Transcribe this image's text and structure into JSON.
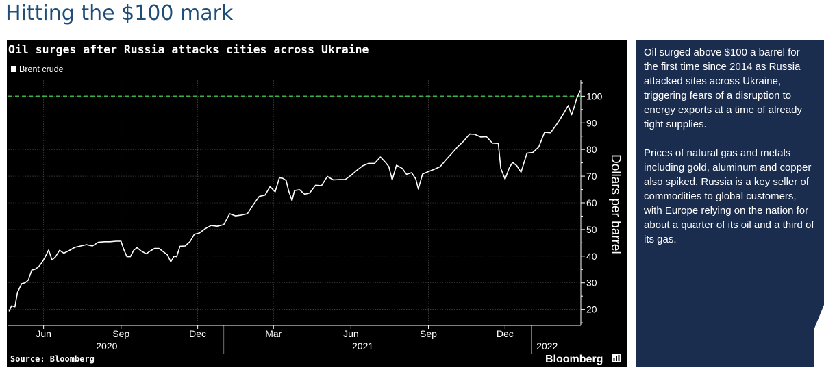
{
  "page": {
    "title": "Hitting the $100 mark"
  },
  "info_panel": {
    "paragraphs": [
      "Oil surged above $100 a barrel for the first time since 2014 as Russia attacked sites across Ukraine, triggering fears of a disruption to energy exports at a time of already tight supplies.",
      "Prices of natural gas and metals including gold, aluminum and copper also spiked. Russia is a key seller of commodities to global customers, with Europe relying on the nation for about a quarter of its oil and a third of its gas."
    ]
  },
  "colors": {
    "title": "#1f4e79",
    "chart_bg": "#000000",
    "line": "#ffffff",
    "reference_line": "#3cb043",
    "panel_bg": "#1b2d4f"
  },
  "chart_data": {
    "type": "line",
    "title": "Oil surges after Russia attacks cities across Ukraine",
    "legend": [
      "Brent crude"
    ],
    "legend_position": "top-left",
    "ylabel": "Dollars per barrel",
    "ylim": [
      14,
      106
    ],
    "y_axis_side": "right",
    "y_ticks": [
      20,
      30,
      40,
      50,
      60,
      70,
      80,
      90,
      100
    ],
    "x_range": [
      "2020-04-20",
      "2022-03-01"
    ],
    "x_ticks": [
      {
        "label": "Jun",
        "date": "2020-06-01"
      },
      {
        "label": "Sep",
        "date": "2020-09-01"
      },
      {
        "label": "Dec",
        "date": "2020-12-01"
      },
      {
        "label": "Mar",
        "date": "2021-03-01"
      },
      {
        "label": "Jun",
        "date": "2021-06-01"
      },
      {
        "label": "Sep",
        "date": "2021-09-01"
      },
      {
        "label": "Dec",
        "date": "2021-12-01"
      }
    ],
    "year_labels": [
      {
        "label": "2020",
        "date": "2020-08-15"
      },
      {
        "label": "2021",
        "date": "2021-06-15"
      },
      {
        "label": "2022",
        "date": "2022-01-20"
      }
    ],
    "year_separators": [
      "2021-01-01",
      "2022-01-01"
    ],
    "reference_line": {
      "y": 100,
      "style": "dashed"
    },
    "grid": true,
    "series": [
      {
        "name": "Brent crude",
        "points": [
          [
            "2020-04-21",
            19.3
          ],
          [
            "2020-04-24",
            21.4
          ],
          [
            "2020-04-28",
            21.0
          ],
          [
            "2020-05-01",
            26.4
          ],
          [
            "2020-05-06",
            29.7
          ],
          [
            "2020-05-10",
            30.0
          ],
          [
            "2020-05-14",
            31.1
          ],
          [
            "2020-05-18",
            34.8
          ],
          [
            "2020-05-22",
            35.1
          ],
          [
            "2020-05-26",
            36.0
          ],
          [
            "2020-05-30",
            37.6
          ],
          [
            "2020-06-03",
            39.8
          ],
          [
            "2020-06-07",
            42.3
          ],
          [
            "2020-06-11",
            38.6
          ],
          [
            "2020-06-15",
            39.7
          ],
          [
            "2020-06-20",
            42.2
          ],
          [
            "2020-06-25",
            41.1
          ],
          [
            "2020-07-01",
            42.0
          ],
          [
            "2020-07-08",
            43.3
          ],
          [
            "2020-07-15",
            43.8
          ],
          [
            "2020-07-22",
            44.3
          ],
          [
            "2020-07-29",
            43.8
          ],
          [
            "2020-08-05",
            45.2
          ],
          [
            "2020-08-12",
            45.4
          ],
          [
            "2020-08-19",
            45.4
          ],
          [
            "2020-08-26",
            45.6
          ],
          [
            "2020-09-01",
            45.6
          ],
          [
            "2020-09-04",
            42.7
          ],
          [
            "2020-09-08",
            39.8
          ],
          [
            "2020-09-12",
            39.8
          ],
          [
            "2020-09-16",
            42.2
          ],
          [
            "2020-09-20",
            43.2
          ],
          [
            "2020-09-25",
            41.9
          ],
          [
            "2020-10-01",
            40.9
          ],
          [
            "2020-10-06",
            42.0
          ],
          [
            "2020-10-11",
            42.9
          ],
          [
            "2020-10-16",
            42.9
          ],
          [
            "2020-10-21",
            41.7
          ],
          [
            "2020-10-26",
            40.5
          ],
          [
            "2020-10-30",
            37.9
          ],
          [
            "2020-11-03",
            40.0
          ],
          [
            "2020-11-06",
            39.8
          ],
          [
            "2020-11-10",
            43.7
          ],
          [
            "2020-11-16",
            43.8
          ],
          [
            "2020-11-22",
            45.5
          ],
          [
            "2020-11-27",
            48.2
          ],
          [
            "2020-12-03",
            48.7
          ],
          [
            "2020-12-10",
            50.3
          ],
          [
            "2020-12-17",
            51.5
          ],
          [
            "2020-12-24",
            51.2
          ],
          [
            "2021-01-01",
            51.8
          ],
          [
            "2021-01-08",
            55.9
          ],
          [
            "2021-01-15",
            55.1
          ],
          [
            "2021-01-22",
            55.4
          ],
          [
            "2021-01-29",
            55.9
          ],
          [
            "2021-02-05",
            59.3
          ],
          [
            "2021-02-12",
            62.4
          ],
          [
            "2021-02-19",
            62.9
          ],
          [
            "2021-02-25",
            66.1
          ],
          [
            "2021-03-03",
            64.1
          ],
          [
            "2021-03-08",
            69.4
          ],
          [
            "2021-03-12",
            69.2
          ],
          [
            "2021-03-16",
            68.4
          ],
          [
            "2021-03-19",
            64.5
          ],
          [
            "2021-03-23",
            60.8
          ],
          [
            "2021-03-26",
            64.6
          ],
          [
            "2021-04-01",
            64.9
          ],
          [
            "2021-04-07",
            63.2
          ],
          [
            "2021-04-13",
            63.7
          ],
          [
            "2021-04-20",
            66.6
          ],
          [
            "2021-04-27",
            66.4
          ],
          [
            "2021-05-04",
            69.9
          ],
          [
            "2021-05-11",
            68.6
          ],
          [
            "2021-05-18",
            68.7
          ],
          [
            "2021-05-25",
            68.7
          ],
          [
            "2021-06-01",
            70.3
          ],
          [
            "2021-06-08",
            72.2
          ],
          [
            "2021-06-15",
            73.9
          ],
          [
            "2021-06-22",
            74.8
          ],
          [
            "2021-06-29",
            74.8
          ],
          [
            "2021-07-06",
            77.2
          ],
          [
            "2021-07-12",
            75.2
          ],
          [
            "2021-07-16",
            73.6
          ],
          [
            "2021-07-20",
            68.6
          ],
          [
            "2021-07-25",
            74.1
          ],
          [
            "2021-08-01",
            72.9
          ],
          [
            "2021-08-06",
            70.7
          ],
          [
            "2021-08-12",
            71.3
          ],
          [
            "2021-08-17",
            69.0
          ],
          [
            "2021-08-20",
            65.2
          ],
          [
            "2021-08-25",
            70.8
          ],
          [
            "2021-08-31",
            71.6
          ],
          [
            "2021-09-08",
            72.6
          ],
          [
            "2021-09-15",
            73.6
          ],
          [
            "2021-09-22",
            76.2
          ],
          [
            "2021-09-29",
            78.6
          ],
          [
            "2021-10-06",
            81.1
          ],
          [
            "2021-10-13",
            83.2
          ],
          [
            "2021-10-20",
            85.8
          ],
          [
            "2021-10-26",
            85.7
          ],
          [
            "2021-11-02",
            84.7
          ],
          [
            "2021-11-09",
            84.8
          ],
          [
            "2021-11-16",
            82.4
          ],
          [
            "2021-11-23",
            82.3
          ],
          [
            "2021-11-26",
            72.9
          ],
          [
            "2021-12-01",
            68.9
          ],
          [
            "2021-12-06",
            73.1
          ],
          [
            "2021-12-10",
            75.2
          ],
          [
            "2021-12-15",
            73.9
          ],
          [
            "2021-12-20",
            71.5
          ],
          [
            "2021-12-27",
            78.6
          ],
          [
            "2022-01-03",
            78.9
          ],
          [
            "2022-01-10",
            80.9
          ],
          [
            "2022-01-17",
            86.5
          ],
          [
            "2022-01-24",
            86.3
          ],
          [
            "2022-01-31",
            89.3
          ],
          [
            "2022-02-07",
            92.7
          ],
          [
            "2022-02-14",
            96.5
          ],
          [
            "2022-02-18",
            93.0
          ],
          [
            "2022-02-22",
            96.8
          ],
          [
            "2022-02-24",
            99.1
          ],
          [
            "2022-02-28",
            102.0
          ]
        ]
      }
    ],
    "source": "Source: Bloomberg",
    "brand": "Bloomberg"
  }
}
